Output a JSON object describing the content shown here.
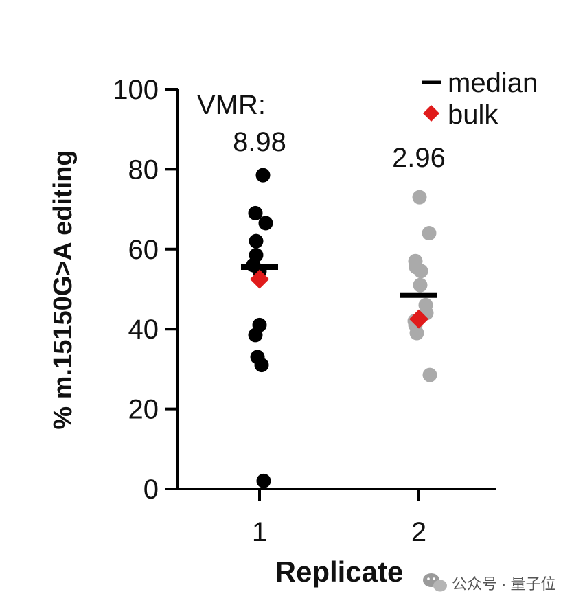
{
  "chart_data": {
    "type": "scatter",
    "ylabel": "% m.15150G>A editing",
    "xlabel": "Replicate",
    "ylim": [
      0,
      100
    ],
    "yticks": [
      0,
      20,
      40,
      60,
      80,
      100
    ],
    "categories": [
      "1",
      "2"
    ],
    "annotation_label": "VMR:",
    "series": [
      {
        "category": "1",
        "vmr": "8.98",
        "color": "#000000",
        "points": [
          {
            "dx": 0.05,
            "y": 78.5
          },
          {
            "dx": -0.06,
            "y": 69
          },
          {
            "dx": 0.09,
            "y": 66.5
          },
          {
            "dx": -0.05,
            "y": 62
          },
          {
            "dx": -0.05,
            "y": 58.5
          },
          {
            "dx": -0.09,
            "y": 56
          },
          {
            "dx": 0.0,
            "y": 54.5
          },
          {
            "dx": 0.0,
            "y": 41
          },
          {
            "dx": -0.06,
            "y": 38.5
          },
          {
            "dx": -0.03,
            "y": 33
          },
          {
            "dx": 0.03,
            "y": 31
          },
          {
            "dx": 0.06,
            "y": 2
          }
        ],
        "median": 55.5,
        "bulk": 52.5
      },
      {
        "category": "2",
        "vmr": "2.96",
        "color": "#aaaaaa",
        "points": [
          {
            "dx": 0.01,
            "y": 73
          },
          {
            "dx": 0.15,
            "y": 64
          },
          {
            "dx": -0.05,
            "y": 57
          },
          {
            "dx": -0.04,
            "y": 55.5
          },
          {
            "dx": 0.03,
            "y": 54.5
          },
          {
            "dx": 0.02,
            "y": 51
          },
          {
            "dx": 0.1,
            "y": 46
          },
          {
            "dx": 0.11,
            "y": 44
          },
          {
            "dx": -0.06,
            "y": 42
          },
          {
            "dx": -0.05,
            "y": 41
          },
          {
            "dx": -0.03,
            "y": 39
          },
          {
            "dx": 0.16,
            "y": 28.5
          }
        ],
        "median": 48.5,
        "bulk": 42.5
      }
    ],
    "legend": {
      "position": "top-right",
      "items": [
        {
          "label": "median",
          "marker": "line",
          "color": "#000000"
        },
        {
          "label": "bulk",
          "marker": "diamond",
          "color": "#e01b1b"
        }
      ]
    }
  },
  "watermark": {
    "text": "公众号 · 量子位",
    "icon": "wechat-icon"
  }
}
